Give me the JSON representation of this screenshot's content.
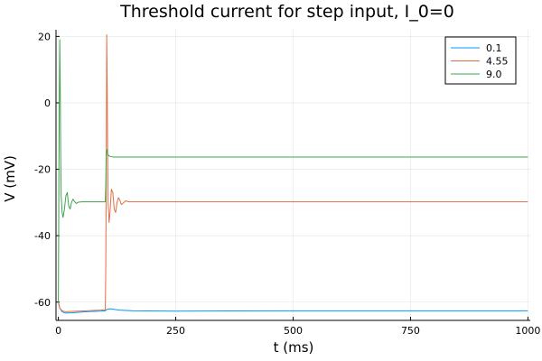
{
  "chart_data": {
    "type": "line",
    "title": "Threshold current for step input, I_0=0",
    "xlabel": "t (ms)",
    "ylabel": "V (mV)",
    "xlim": [
      -5,
      1005
    ],
    "ylim": [
      -65.5,
      22
    ],
    "xticks": [
      0,
      250,
      500,
      750,
      1000
    ],
    "xtick_labels": [
      "0",
      "250",
      "500",
      "750",
      "1000"
    ],
    "yticks": [
      -60,
      -40,
      -20,
      0,
      20
    ],
    "ytick_labels": [
      "-60",
      "-40",
      "-20",
      "0",
      "20"
    ],
    "grid": true,
    "legend_position": "top-right",
    "series": [
      {
        "name": "0.1",
        "color": "#009AFA",
        "points": [
          [
            0,
            -60
          ],
          [
            3,
            -61.8
          ],
          [
            8,
            -62.9
          ],
          [
            15,
            -63.3
          ],
          [
            30,
            -63.2
          ],
          [
            60,
            -62.9
          ],
          [
            90,
            -62.7
          ],
          [
            100,
            -62.6
          ],
          [
            103,
            -62.2
          ],
          [
            110,
            -62.0
          ],
          [
            130,
            -62.4
          ],
          [
            160,
            -62.6
          ],
          [
            250,
            -62.7
          ],
          [
            500,
            -62.6
          ],
          [
            750,
            -62.6
          ],
          [
            1000,
            -62.6
          ]
        ]
      },
      {
        "name": "4.55",
        "color": "#E26F46",
        "points": [
          [
            0,
            -60
          ],
          [
            3,
            -61.8
          ],
          [
            8,
            -62.6
          ],
          [
            15,
            -62.9
          ],
          [
            30,
            -62.8
          ],
          [
            60,
            -62.6
          ],
          [
            90,
            -62.4
          ],
          [
            100,
            -62.3
          ],
          [
            101,
            -50
          ],
          [
            102,
            -20
          ],
          [
            103,
            20.5
          ],
          [
            104,
            5
          ],
          [
            105,
            -15
          ],
          [
            106,
            -30
          ],
          [
            108,
            -36
          ],
          [
            110,
            -33
          ],
          [
            113,
            -26
          ],
          [
            116,
            -27
          ],
          [
            119,
            -32
          ],
          [
            122,
            -33
          ],
          [
            125,
            -30
          ],
          [
            128,
            -28.5
          ],
          [
            131,
            -29.3
          ],
          [
            134,
            -30.6
          ],
          [
            138,
            -30.2
          ],
          [
            143,
            -29.5
          ],
          [
            150,
            -29.8
          ],
          [
            170,
            -29.8
          ],
          [
            250,
            -29.8
          ],
          [
            500,
            -29.8
          ],
          [
            750,
            -29.8
          ],
          [
            1000,
            -29.8
          ]
        ]
      },
      {
        "name": "9.0",
        "color": "#3DA44D",
        "points": [
          [
            0,
            -60
          ],
          [
            1,
            -30
          ],
          [
            2,
            0
          ],
          [
            3,
            19
          ],
          [
            4,
            5
          ],
          [
            5,
            -15
          ],
          [
            6,
            -28
          ],
          [
            8,
            -33
          ],
          [
            10,
            -34.5
          ],
          [
            13,
            -32
          ],
          [
            16,
            -28
          ],
          [
            19,
            -27
          ],
          [
            22,
            -31
          ],
          [
            25,
            -32
          ],
          [
            28,
            -30
          ],
          [
            31,
            -29
          ],
          [
            34,
            -29.6
          ],
          [
            38,
            -30.3
          ],
          [
            43,
            -29.9
          ],
          [
            50,
            -29.8
          ],
          [
            75,
            -29.8
          ],
          [
            100,
            -29.8
          ],
          [
            101,
            -25
          ],
          [
            102,
            -15
          ],
          [
            103,
            -14
          ],
          [
            105,
            -15.5
          ],
          [
            108,
            -16
          ],
          [
            112,
            -16.2
          ],
          [
            120,
            -16.3
          ],
          [
            250,
            -16.3
          ],
          [
            500,
            -16.3
          ],
          [
            750,
            -16.3
          ],
          [
            1000,
            -16.3
          ]
        ]
      }
    ]
  }
}
